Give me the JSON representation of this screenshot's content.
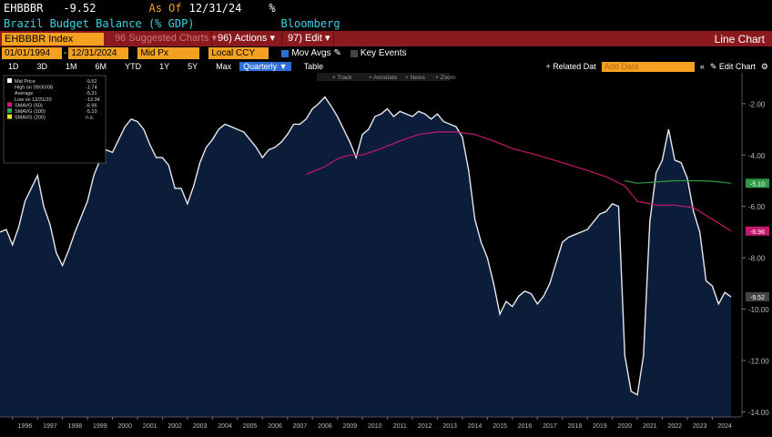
{
  "header": {
    "ticker": "EHBBBR",
    "last_value": "-9.52",
    "as_of_label": "As Of",
    "as_of_date": "12/31/24",
    "unit": "%",
    "description": "Brazil Budget Balance (% GDP)",
    "source": "Bloomberg"
  },
  "toolbar": {
    "security": "EHBBBR Index",
    "suggested": "96 Suggested Charts",
    "suggested_arrow": "▾",
    "actions": "96) Actions",
    "actions_arrow": "▾",
    "edit": "97) Edit",
    "edit_arrow": "▾",
    "chart_type": "Line Chart"
  },
  "controls": {
    "start_date": "01/01/1994",
    "end_date": "12/31/2024",
    "field": "Mid Px",
    "currency": "Local CCY",
    "mov_avgs": "Mov Avgs",
    "key_events": "Key Events"
  },
  "timeframes": [
    "1D",
    "3D",
    "1M",
    "6M",
    "YTD",
    "1Y",
    "5Y",
    "Max"
  ],
  "period": "Quarterly",
  "table_label": "Table",
  "related_data": "+ Related Dat",
  "add_data": "Add Data",
  "edit_chart": "Edit Chart",
  "chart_tools": [
    "Track",
    "Annotate",
    "News",
    "Zoom"
  ],
  "legend": [
    {
      "label": "Mid Price",
      "value": "-9.52",
      "color": "#ffffff"
    },
    {
      "label": "High on 09/30/08",
      "value": "-1.74",
      "color": ""
    },
    {
      "label": "Average",
      "value": "-5.31",
      "color": ""
    },
    {
      "label": "Low on 12/31/20",
      "value": "-13.34",
      "color": ""
    },
    {
      "label": "SMAVG (50)",
      "value": "-6.96",
      "color": "#d0187a"
    },
    {
      "label": "SMAVG (100)",
      "value": "-5.10",
      "color": "#2fa84a"
    },
    {
      "label": "SMAVG (200)",
      "value": "n.a.",
      "color": "#f0e020"
    }
  ],
  "colors": {
    "area_fill": "#0c1d3a",
    "price_line": "#e8e8f0",
    "sma50": "#c21a6e",
    "sma100": "#2f9a44",
    "orange": "#f4a020",
    "red_bar": "#8b1a1f"
  },
  "chart_data": {
    "type": "area",
    "ylim": [
      -14.2,
      -0.8
    ],
    "xlim": [
      1995.5,
      2025.15
    ],
    "y_ticks": [
      "-2.00",
      "-4.00",
      "-6.00",
      "-8.00",
      "-10.00",
      "-12.00",
      "-14.00"
    ],
    "x_ticks": [
      "1996",
      "1997",
      "1998",
      "1999",
      "2000",
      "2001",
      "2002",
      "2003",
      "2004",
      "2005",
      "2006",
      "2007",
      "2008",
      "2009",
      "2010",
      "2011",
      "2012",
      "2013",
      "2014",
      "2015",
      "2016",
      "2017",
      "2018",
      "2019",
      "2020",
      "2021",
      "2022",
      "2023",
      "2024"
    ],
    "last_labels": [
      {
        "value": -5.1,
        "text": "-5.10",
        "color": "#2f9a44"
      },
      {
        "value": -6.96,
        "text": "-6.96",
        "color": "#c21a6e"
      },
      {
        "value": -9.52,
        "text": "-9.52",
        "color": "#444444"
      }
    ],
    "series": [
      {
        "name": "Mid Price",
        "x": [
          1995.5,
          1995.75,
          1996.0,
          1996.25,
          1996.5,
          1996.75,
          1997.0,
          1997.25,
          1997.5,
          1997.75,
          1998.0,
          1998.25,
          1998.5,
          1998.75,
          1999.0,
          1999.25,
          1999.5,
          1999.75,
          2000.0,
          2000.25,
          2000.5,
          2000.75,
          2001.0,
          2001.25,
          2001.5,
          2001.75,
          2002.0,
          2002.25,
          2002.5,
          2002.75,
          2003.0,
          2003.25,
          2003.5,
          2003.75,
          2004.0,
          2004.25,
          2004.5,
          2004.75,
          2005.0,
          2005.25,
          2005.5,
          2005.75,
          2006.0,
          2006.25,
          2006.5,
          2006.75,
          2007.0,
          2007.25,
          2007.5,
          2007.75,
          2008.0,
          2008.25,
          2008.5,
          2008.75,
          2009.0,
          2009.25,
          2009.5,
          2009.75,
          2010.0,
          2010.25,
          2010.5,
          2010.75,
          2011.0,
          2011.25,
          2011.5,
          2011.75,
          2012.0,
          2012.25,
          2012.5,
          2012.75,
          2013.0,
          2013.25,
          2013.5,
          2013.75,
          2014.0,
          2014.25,
          2014.5,
          2014.75,
          2015.0,
          2015.25,
          2015.5,
          2015.75,
          2016.0,
          2016.25,
          2016.5,
          2016.75,
          2017.0,
          2017.25,
          2017.5,
          2017.75,
          2018.0,
          2018.25,
          2018.5,
          2018.75,
          2019.0,
          2019.25,
          2019.5,
          2019.75,
          2020.0,
          2020.25,
          2020.5,
          2020.75,
          2021.0,
          2021.25,
          2021.5,
          2021.75,
          2022.0,
          2022.25,
          2022.5,
          2022.75,
          2023.0,
          2023.25,
          2023.5,
          2023.75,
          2024.0,
          2024.25,
          2024.5,
          2024.75
        ],
        "y": [
          -7.0,
          -6.9,
          -7.5,
          -6.8,
          -5.8,
          -5.3,
          -4.8,
          -6.0,
          -6.7,
          -7.8,
          -8.3,
          -7.7,
          -7.0,
          -6.4,
          -5.8,
          -4.8,
          -4.2,
          -3.8,
          -3.9,
          -3.4,
          -2.9,
          -2.6,
          -2.7,
          -3.0,
          -3.6,
          -4.1,
          -4.1,
          -4.4,
          -5.3,
          -5.3,
          -5.9,
          -5.2,
          -4.3,
          -3.7,
          -3.4,
          -3.0,
          -2.8,
          -2.9,
          -3.0,
          -3.1,
          -3.4,
          -3.7,
          -4.1,
          -3.8,
          -3.7,
          -3.5,
          -3.2,
          -2.8,
          -2.8,
          -2.6,
          -2.2,
          -2.0,
          -1.74,
          -2.1,
          -2.5,
          -3.0,
          -3.5,
          -4.1,
          -3.2,
          -3.0,
          -2.5,
          -2.4,
          -2.2,
          -2.5,
          -2.3,
          -2.4,
          -2.5,
          -2.3,
          -2.4,
          -2.6,
          -2.4,
          -2.7,
          -2.8,
          -2.9,
          -3.3,
          -4.6,
          -6.5,
          -7.4,
          -8.0,
          -9.0,
          -10.2,
          -9.7,
          -9.9,
          -9.5,
          -9.3,
          -9.4,
          -9.8,
          -9.5,
          -9.0,
          -8.2,
          -7.4,
          -7.2,
          -7.1,
          -7.0,
          -6.9,
          -6.6,
          -6.3,
          -6.2,
          -5.9,
          -6.0,
          -11.8,
          -13.2,
          -13.34,
          -11.8,
          -6.6,
          -4.7,
          -4.2,
          -3.0,
          -4.2,
          -4.3,
          -4.9,
          -6.2,
          -7.0,
          -8.9,
          -9.1,
          -9.8,
          -9.35,
          -9.52
        ]
      },
      {
        "name": "SMAVG (50)",
        "x": [
          2007.75,
          2008.5,
          2009.0,
          2009.5,
          2010.0,
          2010.75,
          2011.5,
          2012.25,
          2013.0,
          2013.75,
          2014.5,
          2015.25,
          2016.0,
          2017.0,
          2018.0,
          2019.0,
          2019.75,
          2020.5,
          2021.0,
          2021.75,
          2022.5,
          2023.25,
          2024.0,
          2024.75
        ],
        "y": [
          -4.75,
          -4.45,
          -4.15,
          -4.0,
          -4.0,
          -3.75,
          -3.45,
          -3.2,
          -3.1,
          -3.1,
          -3.2,
          -3.45,
          -3.75,
          -4.0,
          -4.3,
          -4.6,
          -4.85,
          -5.2,
          -5.8,
          -5.95,
          -5.95,
          -6.05,
          -6.5,
          -6.96
        ]
      },
      {
        "name": "SMAVG (100)",
        "x": [
          2020.5,
          2021.0,
          2021.75,
          2022.5,
          2023.25,
          2024.0,
          2024.75
        ],
        "y": [
          -5.0,
          -5.1,
          -5.05,
          -5.0,
          -5.0,
          -5.02,
          -5.1
        ]
      }
    ]
  }
}
